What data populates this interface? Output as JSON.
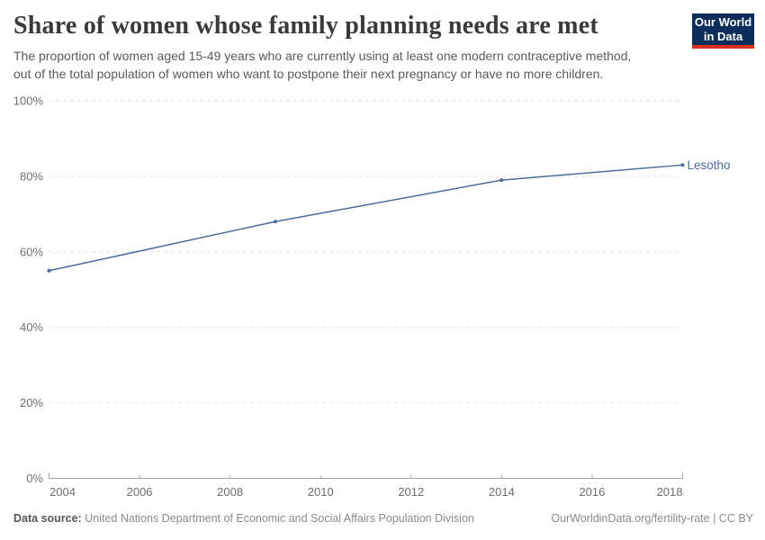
{
  "header": {
    "title": "Share of women whose family planning needs are met",
    "subtitle_lines": [
      "The proportion of women aged 15-49 years who are currently using at least one modern contraceptive method,",
      "out of the total population of women who want to postpone their next pregnancy or have no more children."
    ],
    "logo": {
      "line1": "Our World",
      "line2": "in Data",
      "bg_color": "#0d2e5a",
      "accent_color": "#d7301f"
    }
  },
  "chart_data": {
    "type": "line",
    "title": "Share of women whose family planning needs are met",
    "series": [
      {
        "name": "Lesotho",
        "color": "#4c6a9c",
        "x": [
          2004,
          2009,
          2014,
          2018
        ],
        "values": [
          55,
          68,
          79,
          83
        ]
      }
    ],
    "xlabel": "",
    "ylabel": "",
    "xlim": [
      2004,
      2018
    ],
    "ylim": [
      0,
      100
    ],
    "xticks": [
      2004,
      2006,
      2008,
      2010,
      2012,
      2014,
      2016,
      2018
    ],
    "yticks": [
      0,
      20,
      40,
      60,
      80,
      100
    ],
    "ytick_suffix": "%",
    "grid": "horizontal-dashed",
    "legend_position": "end-of-line-label"
  },
  "footer": {
    "datasource_label": "Data source:",
    "datasource_text": "United Nations Department of Economic and Social Affairs Population Division",
    "credit_text": "OurWorldinData.org/fertility-rate | CC BY"
  },
  "colors": {
    "line": "#4c6a9c",
    "grid": "#dedede",
    "axis": "#a5a5a5",
    "tick_text": "#6e6e6e",
    "title_text": "#3a3a3a",
    "subtitle_text": "#5a5a5a",
    "footer_text": "#8a8a8a",
    "footer_label_text": "#565656"
  }
}
